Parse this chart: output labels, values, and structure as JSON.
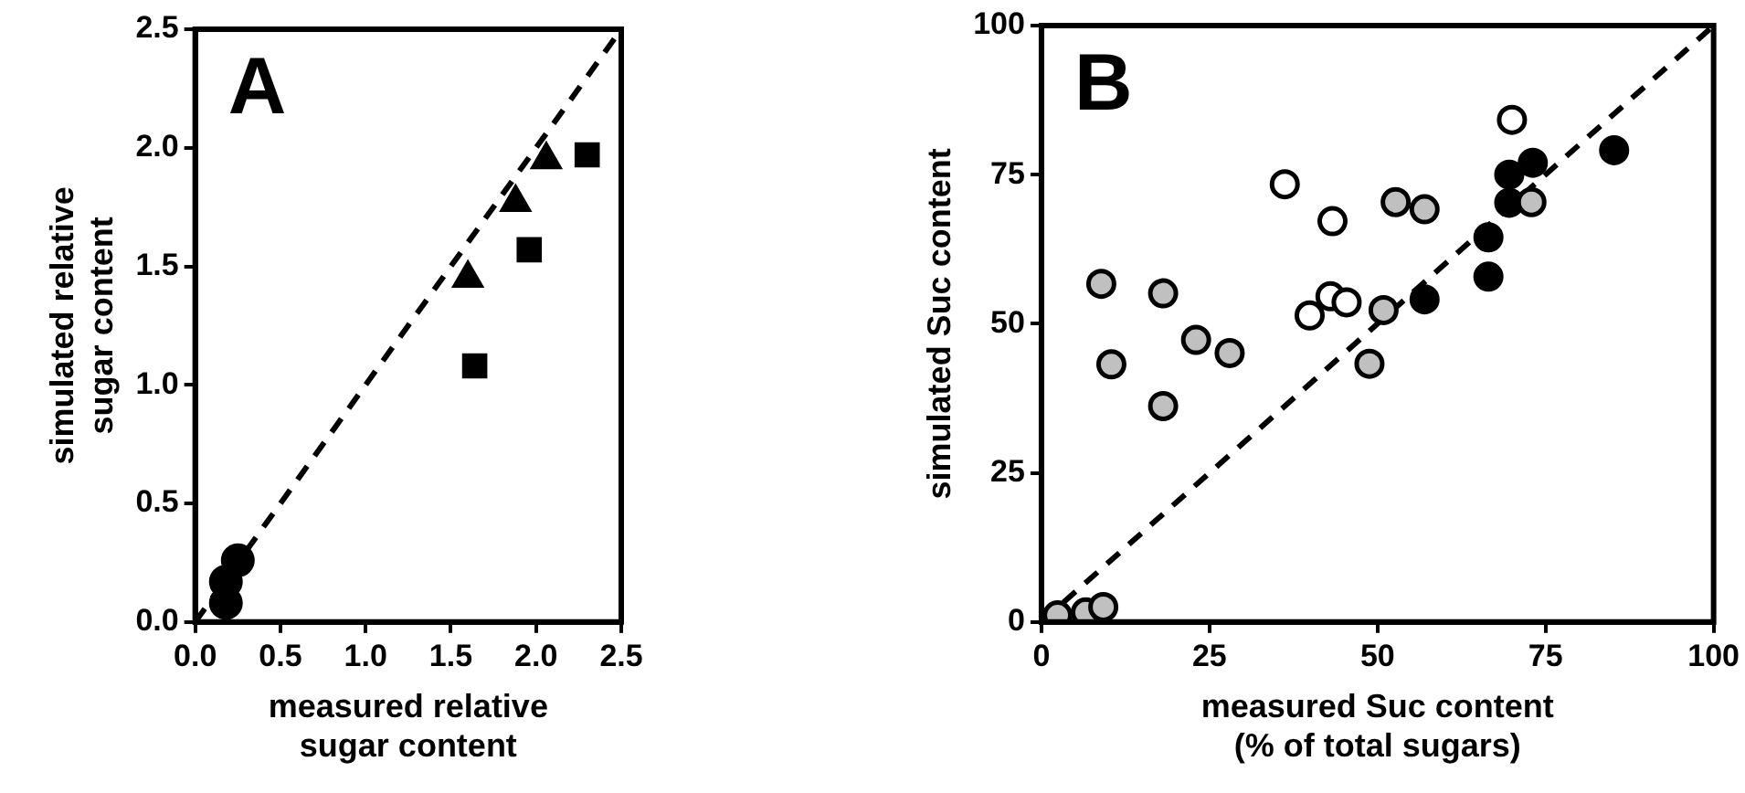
{
  "chart_data": [
    {
      "type": "scatter",
      "xlabel": "measured relative sugar content",
      "ylabel": "simulated relative sugar content",
      "annotations": [
        "A"
      ],
      "xlim": [
        0,
        2.5
      ],
      "ylim": [
        0,
        2.5
      ],
      "xticks": [
        {
          "value": 0,
          "label": "0.0"
        },
        {
          "value": 0.5,
          "label": "0.5"
        },
        {
          "value": 1,
          "label": "1.0"
        },
        {
          "value": 1.5,
          "label": "1.5"
        },
        {
          "value": 2,
          "label": "2.0"
        },
        {
          "value": 2.5,
          "label": "2.5"
        }
      ],
      "yticks": [
        {
          "value": 0,
          "label": "0.0"
        },
        {
          "value": 0.5,
          "label": "0.5"
        },
        {
          "value": 1,
          "label": "1.0"
        },
        {
          "value": 1.5,
          "label": "1.5"
        },
        {
          "value": 2,
          "label": "2.0"
        },
        {
          "value": 2.5,
          "label": "2.5"
        }
      ],
      "grid": false,
      "legend": false,
      "series": [
        {
          "type": "line",
          "color": "#000000",
          "marker": "none",
          "line_style": "dashed",
          "x": [
            0,
            2.5
          ],
          "values": [
            0,
            2.5
          ]
        },
        {
          "color": "#000000",
          "marker": "circle",
          "x": [
            0.18,
            0.18,
            0.25
          ],
          "values": [
            0.17,
            0.08,
            0.26
          ]
        },
        {
          "color": "#000000",
          "marker": "triangle",
          "x": [
            1.6,
            1.88,
            2.06
          ],
          "values": [
            1.45,
            1.77,
            1.95
          ]
        },
        {
          "color": "#000000",
          "marker": "square",
          "x": [
            1.64,
            1.96,
            2.3
          ],
          "values": [
            1.08,
            1.57,
            1.97
          ]
        }
      ]
    },
    {
      "type": "scatter",
      "xlabel": "measured Suc content (% of total sugars)",
      "ylabel": "simulated Suc content",
      "annotations": [
        "B"
      ],
      "xlim": [
        0,
        100
      ],
      "ylim": [
        0,
        100
      ],
      "xticks": [
        0,
        25,
        50,
        75,
        100
      ],
      "yticks": [
        0,
        25,
        50,
        75,
        100
      ],
      "grid": false,
      "legend": false,
      "series": [
        {
          "type": "line",
          "color": "#000000",
          "marker": "none",
          "line_style": "dashed",
          "x": [
            0,
            100
          ],
          "values": [
            0,
            100
          ]
        },
        {
          "color": "#c0c0c0",
          "marker": "circle",
          "x": [
            8.9,
            18.1,
            10.4,
            18.1,
            23.0,
            28.0,
            48.8,
            50.9,
            52.7,
            57.0,
            72.9,
            2.4,
            6.6,
            9.2
          ],
          "values": [
            56.7,
            55.1,
            43.2,
            36.2,
            47.3,
            45.1,
            43.3,
            52.3,
            70.4,
            69.2,
            70.4,
            1.1,
            1.6,
            2.5
          ]
        },
        {
          "color": "#ffffff",
          "marker": "circle",
          "x": [
            70.0,
            36.2,
            43.3,
            39.9,
            43.0,
            45.4
          ],
          "values": [
            84.2,
            73.4,
            67.2,
            51.4,
            54.6,
            53.6
          ]
        },
        {
          "color": "#000000",
          "marker": "circle",
          "x": [
            57.0,
            66.5,
            66.5,
            69.6,
            69.6,
            73.1,
            85.2
          ],
          "values": [
            54.1,
            57.9,
            64.5,
            70.3,
            75.0,
            77.0,
            79.1
          ]
        }
      ]
    }
  ]
}
